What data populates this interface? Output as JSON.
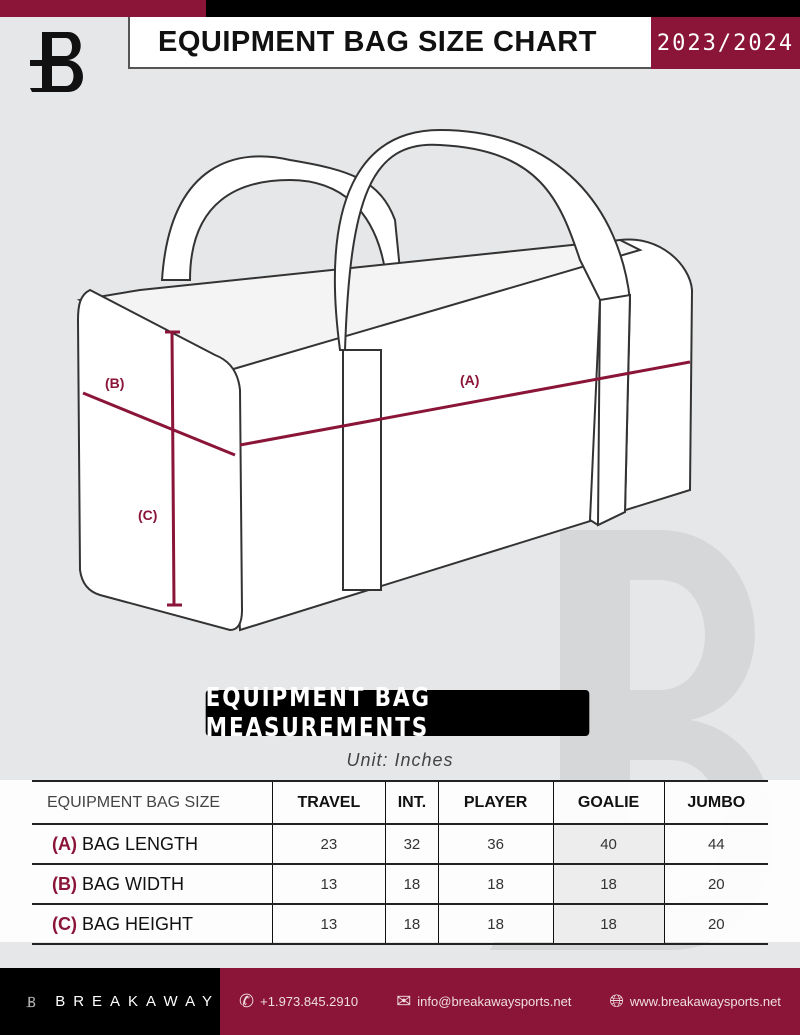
{
  "header": {
    "title": "EQUIPMENT BAG SIZE CHART",
    "season": "2023/2024",
    "logo_letter": "B"
  },
  "diagram": {
    "labels": {
      "a": "(A)",
      "b": "(B)",
      "c": "(C)"
    }
  },
  "section_title": "EQUIPMENT BAG MEASUREMENTS",
  "unit": "Unit: Inches",
  "table": {
    "header": [
      "EQUIPMENT BAG SIZE",
      "TRAVEL",
      "INT.",
      "PLAYER",
      "GOALIE",
      "JUMBO"
    ],
    "rows": [
      {
        "letter": "(A)",
        "label": "BAG LENGTH",
        "values": [
          "23",
          "32",
          "36",
          "40",
          "44"
        ]
      },
      {
        "letter": "(B)",
        "label": "BAG WIDTH",
        "values": [
          "13",
          "18",
          "18",
          "18",
          "20"
        ]
      },
      {
        "letter": "(C)",
        "label": "BAG HEIGHT",
        "values": [
          "13",
          "18",
          "18",
          "18",
          "20"
        ]
      }
    ]
  },
  "footer": {
    "brand": "BREAKAWAY",
    "phone": "+1.973.845.2910",
    "email": "info@breakawaysports.net",
    "website": "www.breakawaysports.net"
  },
  "colors": {
    "accent": "#8a1538",
    "dark": "#000000",
    "background": "#e6e7e8"
  }
}
